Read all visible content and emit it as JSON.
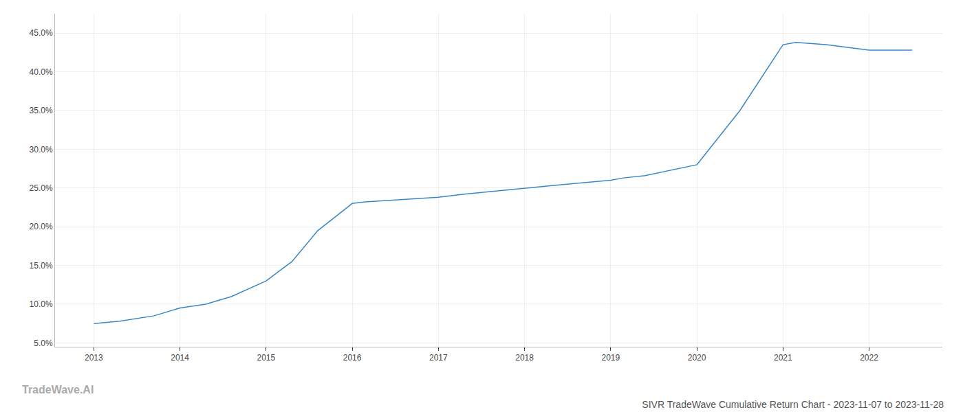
{
  "chart_data": {
    "type": "line",
    "title": "SIVR TradeWave Cumulative Return Chart - 2023-11-07 to 2023-11-28",
    "annotations": [
      {
        "text": "TradeWave.AI"
      }
    ],
    "x": [
      2013.0,
      2013.3,
      2013.7,
      2014.0,
      2014.3,
      2014.6,
      2015.0,
      2015.3,
      2015.6,
      2016.0,
      2016.15,
      2016.3,
      2016.6,
      2017.0,
      2017.3,
      2018.0,
      2018.3,
      2018.6,
      2019.0,
      2019.15,
      2019.4,
      2020.0,
      2020.5,
      2021.0,
      2021.15,
      2021.5,
      2022.0,
      2022.5
    ],
    "values": [
      7.5,
      7.8,
      8.5,
      9.5,
      10.0,
      11.0,
      13.0,
      15.5,
      19.5,
      23.0,
      23.2,
      23.3,
      23.5,
      23.8,
      24.2,
      25.0,
      25.3,
      25.6,
      26.0,
      26.3,
      26.6,
      28.0,
      35.0,
      43.5,
      43.8,
      43.5,
      42.8,
      42.8
    ],
    "color": "#3a87c8",
    "xlim": [
      2012.55,
      2022.85
    ],
    "ylim": [
      4.5,
      47.5
    ],
    "xticks": [
      2013,
      2014,
      2015,
      2016,
      2017,
      2018,
      2019,
      2020,
      2021,
      2022
    ],
    "yticks": [
      {
        "value": 5.0,
        "label": "5.0%"
      },
      {
        "value": 10.0,
        "label": "10.0%"
      },
      {
        "value": 15.0,
        "label": "15.0%"
      },
      {
        "value": 20.0,
        "label": "20.0%"
      },
      {
        "value": 25.0,
        "label": "25.0%"
      },
      {
        "value": 30.0,
        "label": "30.0%"
      },
      {
        "value": 35.0,
        "label": "35.0%"
      },
      {
        "value": 40.0,
        "label": "40.0%"
      },
      {
        "value": 45.0,
        "label": "45.0%"
      }
    ],
    "grid": true
  }
}
